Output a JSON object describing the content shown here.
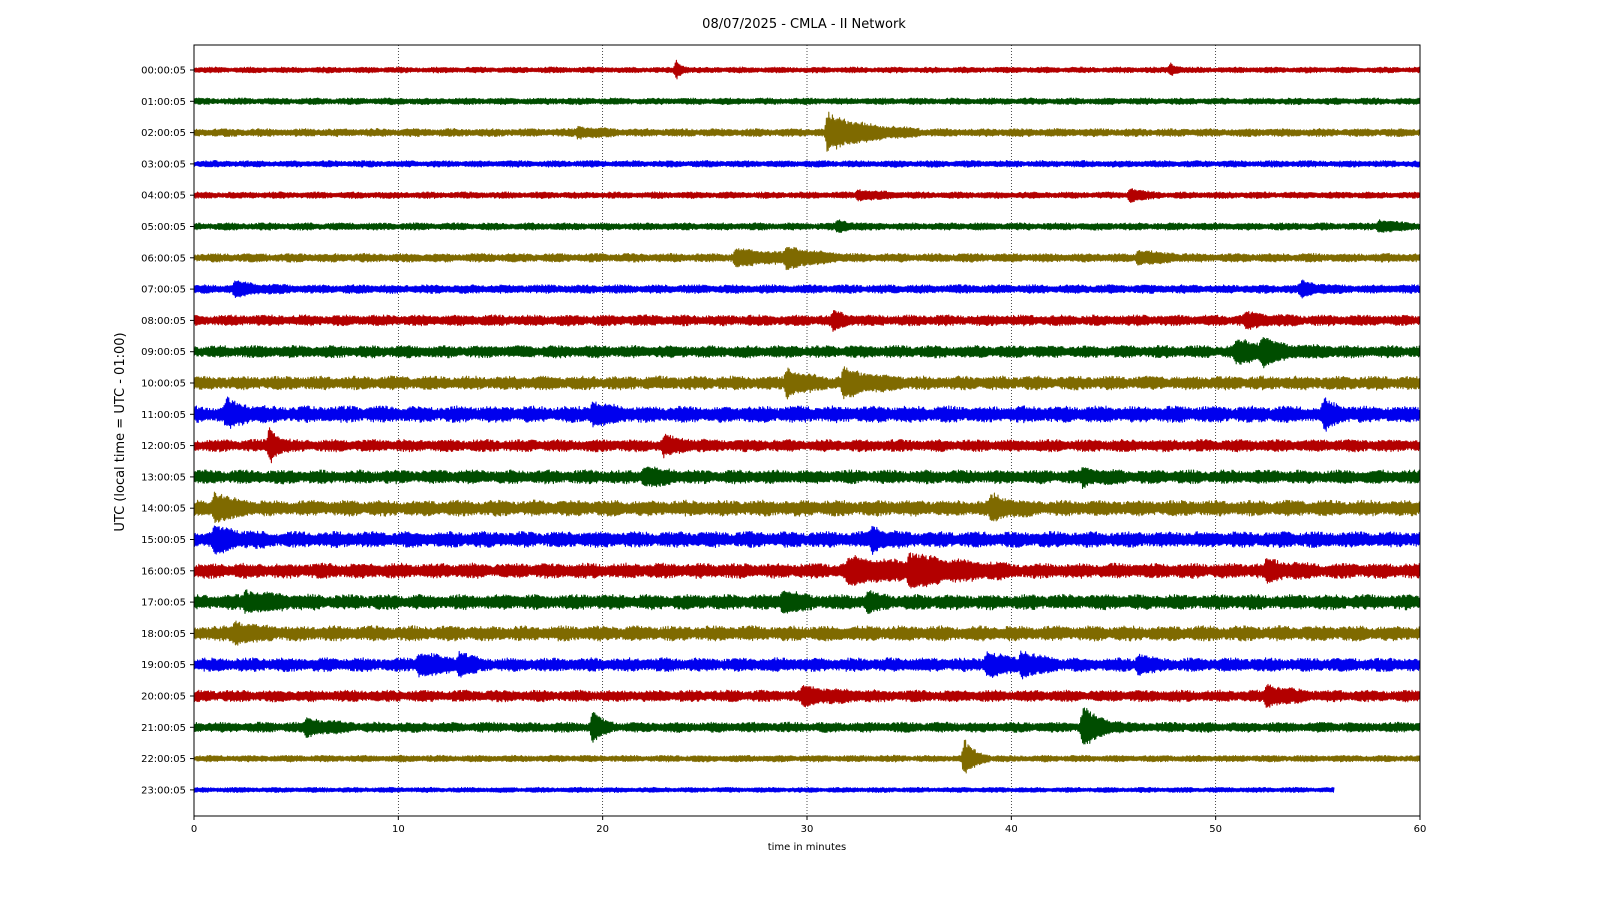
{
  "chart_data": {
    "type": "line",
    "title": "08/07/2025 - CMLA - II Network",
    "xlabel": "time in minutes",
    "ylabel": "UTC (local time = UTC - 01:00)",
    "xlim": [
      0,
      60
    ],
    "xticks": [
      0,
      10,
      20,
      30,
      40,
      50,
      60
    ],
    "grid": "vertical dotted at every 10 minutes",
    "colors": [
      "#b30000",
      "#004d00",
      "#7f6a00",
      "#0000ee"
    ],
    "rows": [
      {
        "label": "00:00:05",
        "noise": 0.8,
        "events": [
          {
            "t": 23.6,
            "amp": 2.6,
            "dur": 0.25
          },
          {
            "t": 47.8,
            "amp": 1.8,
            "dur": 0.25
          }
        ]
      },
      {
        "label": "01:00:05",
        "noise": 0.9,
        "events": []
      },
      {
        "label": "02:00:05",
        "noise": 1.1,
        "events": [
          {
            "t": 31.0,
            "amp": 5.5,
            "dur": 1.8
          },
          {
            "t": 18.8,
            "amp": 1.4,
            "dur": 0.8
          }
        ]
      },
      {
        "label": "03:00:05",
        "noise": 0.9,
        "events": []
      },
      {
        "label": "04:00:05",
        "noise": 0.9,
        "events": [
          {
            "t": 32.5,
            "amp": 1.3,
            "dur": 1.0
          },
          {
            "t": 45.8,
            "amp": 1.8,
            "dur": 0.6
          }
        ]
      },
      {
        "label": "05:00:05",
        "noise": 1.0,
        "events": [
          {
            "t": 31.5,
            "amp": 1.4,
            "dur": 0.5
          },
          {
            "t": 58.0,
            "amp": 1.5,
            "dur": 0.8
          }
        ]
      },
      {
        "label": "06:00:05",
        "noise": 1.2,
        "events": [
          {
            "t": 26.5,
            "amp": 2.2,
            "dur": 2.0
          },
          {
            "t": 29.0,
            "amp": 2.4,
            "dur": 1.2
          },
          {
            "t": 46.2,
            "amp": 1.8,
            "dur": 1.0
          }
        ]
      },
      {
        "label": "07:00:05",
        "noise": 1.2,
        "events": [
          {
            "t": 2.0,
            "amp": 1.8,
            "dur": 1.0
          },
          {
            "t": 54.2,
            "amp": 1.8,
            "dur": 0.8
          }
        ]
      },
      {
        "label": "08:00:05",
        "noise": 1.5,
        "events": [
          {
            "t": 31.3,
            "amp": 2.2,
            "dur": 0.5
          },
          {
            "t": 51.5,
            "amp": 1.6,
            "dur": 1.0
          }
        ]
      },
      {
        "label": "09:00:05",
        "noise": 1.7,
        "events": [
          {
            "t": 51.0,
            "amp": 2.6,
            "dur": 2.0
          },
          {
            "t": 52.3,
            "amp": 2.8,
            "dur": 0.5
          }
        ]
      },
      {
        "label": "10:00:05",
        "noise": 1.9,
        "events": [
          {
            "t": 29.0,
            "amp": 3.6,
            "dur": 0.8
          },
          {
            "t": 31.8,
            "amp": 3.6,
            "dur": 1.2
          }
        ]
      },
      {
        "label": "11:00:05",
        "noise": 2.3,
        "events": [
          {
            "t": 1.6,
            "amp": 3.0,
            "dur": 0.8
          },
          {
            "t": 19.5,
            "amp": 2.4,
            "dur": 0.8
          },
          {
            "t": 55.3,
            "amp": 3.6,
            "dur": 0.5
          }
        ]
      },
      {
        "label": "12:00:05",
        "noise": 1.7,
        "events": [
          {
            "t": 3.7,
            "amp": 5.0,
            "dur": 0.4
          },
          {
            "t": 23.0,
            "amp": 2.2,
            "dur": 0.8
          }
        ]
      },
      {
        "label": "13:00:05",
        "noise": 1.9,
        "events": [
          {
            "t": 22.0,
            "amp": 2.0,
            "dur": 1.0
          },
          {
            "t": 43.5,
            "amp": 1.8,
            "dur": 0.8
          }
        ]
      },
      {
        "label": "14:00:05",
        "noise": 2.2,
        "events": [
          {
            "t": 1.0,
            "amp": 3.6,
            "dur": 0.8
          },
          {
            "t": 39.0,
            "amp": 3.0,
            "dur": 0.8
          }
        ]
      },
      {
        "label": "15:00:05",
        "noise": 2.2,
        "events": [
          {
            "t": 1.0,
            "amp": 3.0,
            "dur": 1.0
          },
          {
            "t": 33.2,
            "amp": 2.8,
            "dur": 0.6
          }
        ]
      },
      {
        "label": "16:00:05",
        "noise": 2.1,
        "events": [
          {
            "t": 32.0,
            "amp": 3.0,
            "dur": 3.0
          },
          {
            "t": 35.0,
            "amp": 3.4,
            "dur": 2.0
          },
          {
            "t": 52.5,
            "amp": 2.2,
            "dur": 1.0
          }
        ]
      },
      {
        "label": "17:00:05",
        "noise": 2.1,
        "events": [
          {
            "t": 2.5,
            "amp": 2.0,
            "dur": 1.5
          },
          {
            "t": 28.8,
            "amp": 2.8,
            "dur": 0.6
          },
          {
            "t": 33.0,
            "amp": 2.0,
            "dur": 0.4
          }
        ]
      },
      {
        "label": "18:00:05",
        "noise": 2.1,
        "events": [
          {
            "t": 2.0,
            "amp": 2.6,
            "dur": 0.8
          }
        ]
      },
      {
        "label": "19:00:05",
        "noise": 1.9,
        "events": [
          {
            "t": 11.0,
            "amp": 2.8,
            "dur": 1.2
          },
          {
            "t": 13.0,
            "amp": 3.0,
            "dur": 0.4
          },
          {
            "t": 38.8,
            "amp": 3.2,
            "dur": 0.8
          },
          {
            "t": 40.5,
            "amp": 3.2,
            "dur": 0.8
          },
          {
            "t": 46.2,
            "amp": 2.2,
            "dur": 0.5
          }
        ]
      },
      {
        "label": "20:00:05",
        "noise": 1.6,
        "events": [
          {
            "t": 29.8,
            "amp": 2.2,
            "dur": 1.5
          },
          {
            "t": 52.5,
            "amp": 2.8,
            "dur": 1.0
          }
        ]
      },
      {
        "label": "21:00:05",
        "noise": 1.4,
        "events": [
          {
            "t": 5.5,
            "amp": 2.2,
            "dur": 1.0
          },
          {
            "t": 19.5,
            "amp": 5.0,
            "dur": 0.4
          },
          {
            "t": 43.5,
            "amp": 6.0,
            "dur": 0.8
          }
        ]
      },
      {
        "label": "22:00:05",
        "noise": 0.9,
        "events": [
          {
            "t": 37.7,
            "amp": 5.5,
            "dur": 0.5
          }
        ]
      },
      {
        "label": "23:00:05",
        "noise": 0.7,
        "end": 55.8,
        "events": []
      }
    ]
  }
}
